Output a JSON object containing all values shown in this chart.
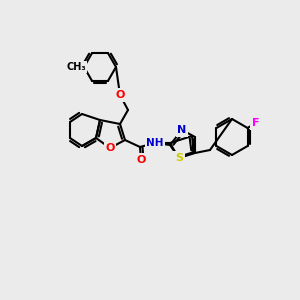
{
  "background_color": "#ebebeb",
  "bond_color": "#000000",
  "bond_width": 1.5,
  "atom_colors": {
    "O": "#ff0000",
    "N": "#0000cc",
    "S": "#cccc00",
    "F": "#ff00ff",
    "C": "#000000",
    "H": "#555555"
  },
  "figsize": [
    3.0,
    3.0
  ],
  "dpi": 100
}
